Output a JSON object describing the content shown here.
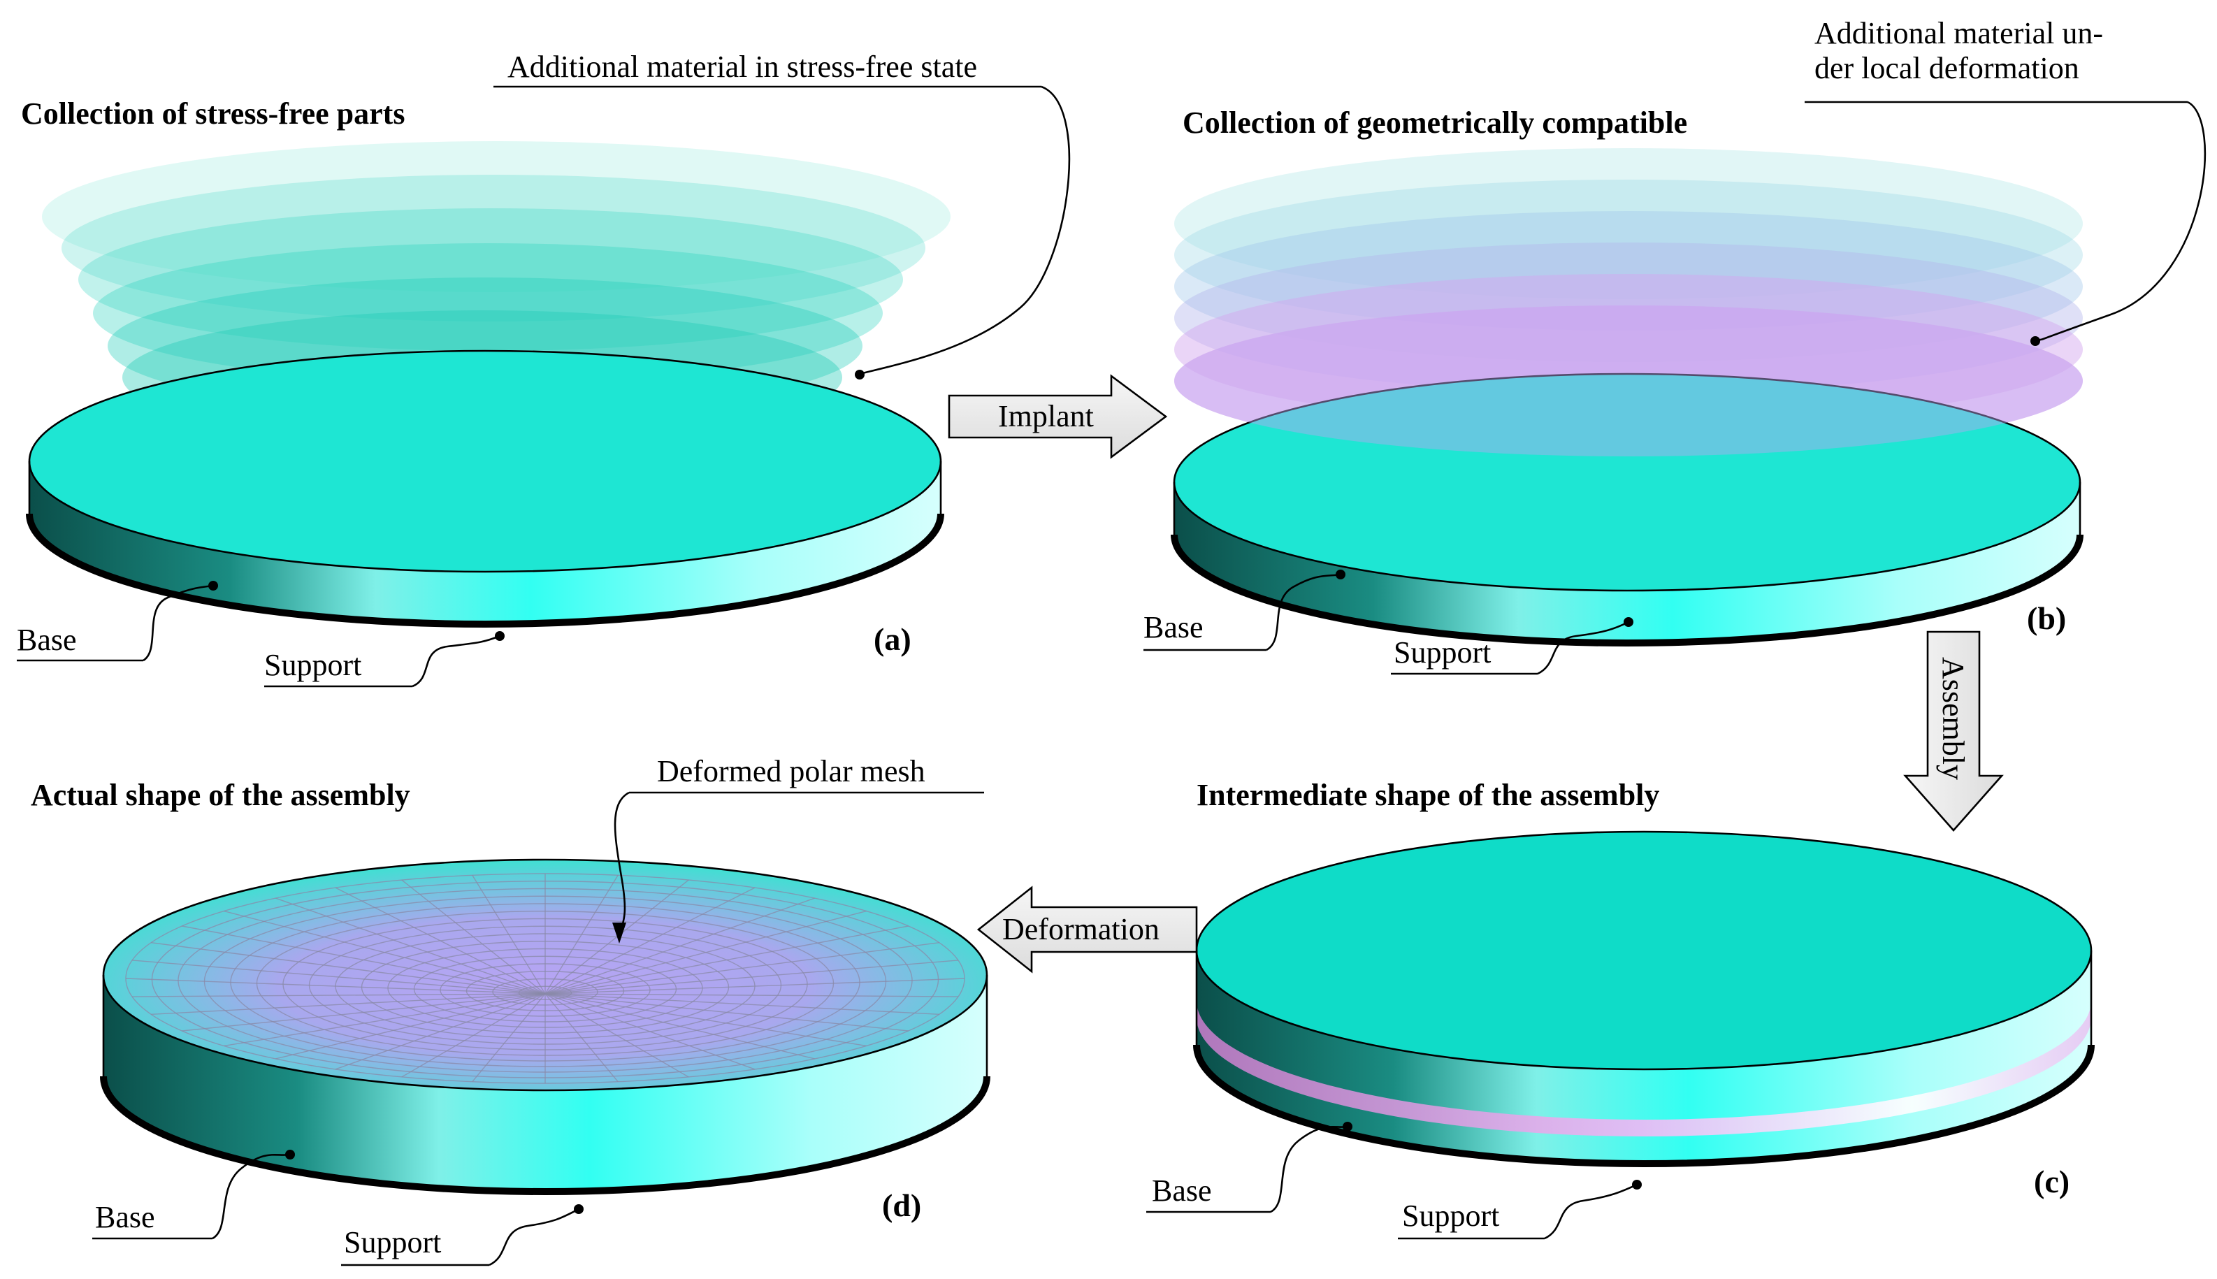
{
  "panels": {
    "a": {
      "title": "Collection of stress-free parts",
      "callout": "Additional material in stress-free state",
      "base": "Base",
      "support": "Support",
      "tag": "(a)"
    },
    "b": {
      "title": "Collection of geometrically compatible",
      "callout_line1": "Additional material un-",
      "callout_line2": "der local deformation",
      "base": "Base",
      "support": "Support",
      "tag": "(b)"
    },
    "c": {
      "title": "Intermediate shape of the assembly",
      "base": "Base",
      "support": "Support",
      "tag": "(c)"
    },
    "d": {
      "title": "Actual shape of the assembly",
      "callout": "Deformed polar mesh",
      "base": "Base",
      "support": "Support",
      "tag": "(d)"
    }
  },
  "arrows": {
    "implant": "Implant",
    "assembly": "Assembly",
    "deformation": "Deformation"
  },
  "colors": {
    "disk_top": "#1ee6d3",
    "disk_top_c": "#0fdcc8",
    "side_dark": "#0b5e57",
    "side_light": "#b6fffb",
    "layer_teal": "#2fd5c2",
    "layer_pink": "#e7a7f0",
    "mesh_purple": "#b9a6f0",
    "arrow_fill": "#e8e8e8"
  }
}
